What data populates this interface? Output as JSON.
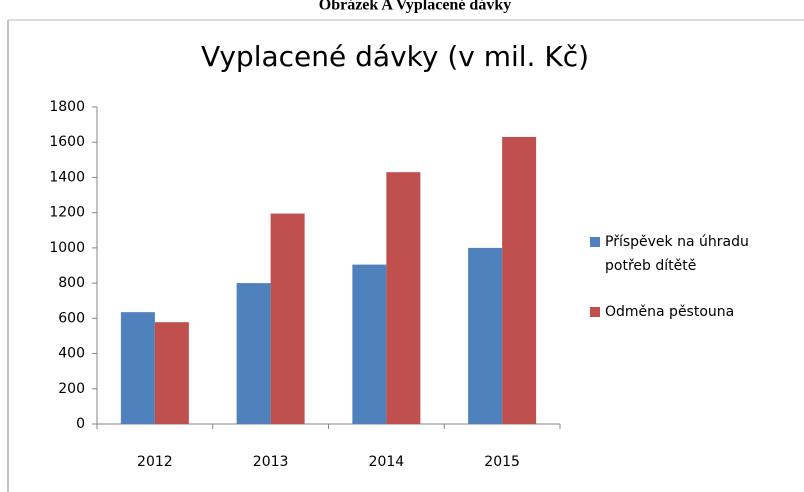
{
  "caption": "Obrázek A Vyplacené dávky",
  "chart_data": {
    "type": "bar",
    "title": "Vyplacené dávky (v mil. Kč)",
    "categories": [
      "2012",
      "2013",
      "2014",
      "2015"
    ],
    "series": [
      {
        "name": "Příspěvek na úhradu potřeb dítětě",
        "color": "#4f81bd",
        "values": [
          635,
          800,
          905,
          1000
        ]
      },
      {
        "name": "Odměna pěstouna",
        "color": "#c0504d",
        "values": [
          578,
          1195,
          1430,
          1630
        ]
      }
    ],
    "ylim": [
      0,
      1800
    ],
    "yticks": [
      0,
      200,
      400,
      600,
      800,
      1000,
      1200,
      1400,
      1600,
      1800
    ],
    "grid": false,
    "legend": "right"
  }
}
